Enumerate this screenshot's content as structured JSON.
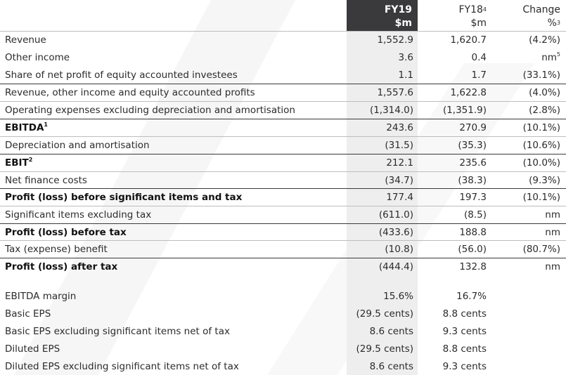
{
  "header": {
    "fy19_line1": "FY19",
    "fy19_line2": "$m",
    "fy18_line1": "FY18",
    "fy18_sup": "4",
    "fy18_line2": "$m",
    "change_line1": "Change",
    "change_line2": "%",
    "change_sup": "3"
  },
  "rows": [
    {
      "label": "Revenue",
      "sup": "",
      "fy19": "1,552.9",
      "fy18": "1,620.7",
      "change": "(4.2%)",
      "change_sup": ""
    },
    {
      "label": "Other income",
      "sup": "",
      "fy19": "3.6",
      "fy18": "0.4",
      "change": "nm",
      "change_sup": "5"
    },
    {
      "label": "Share of net profit of equity accounted investees",
      "sup": "",
      "fy19": "1.1",
      "fy18": "1.7",
      "change": "(33.1%)",
      "change_sup": ""
    },
    {
      "label": "Revenue, other income and equity accounted profits",
      "sup": "",
      "fy19": "1,557.6",
      "fy18": "1,622.8",
      "change": "(4.0%)",
      "change_sup": ""
    },
    {
      "label": "Operating expenses excluding depreciation and amortisation",
      "sup": "",
      "fy19": "(1,314.0)",
      "fy18": "(1,351.9)",
      "change": "(2.8%)",
      "change_sup": ""
    },
    {
      "label": "EBITDA",
      "sup": "1",
      "fy19": "243.6",
      "fy18": "270.9",
      "change": "(10.1%)",
      "change_sup": ""
    },
    {
      "label": "Depreciation and amortisation",
      "sup": "",
      "fy19": "(31.5)",
      "fy18": "(35.3)",
      "change": "(10.6%)",
      "change_sup": ""
    },
    {
      "label": "EBIT",
      "sup": "2",
      "fy19": "212.1",
      "fy18": "235.6",
      "change": "(10.0%)",
      "change_sup": ""
    },
    {
      "label": "Net finance costs",
      "sup": "",
      "fy19": "(34.7)",
      "fy18": "(38.3)",
      "change": "(9.3%)",
      "change_sup": ""
    },
    {
      "label": "Profit (loss) before significant items and tax",
      "sup": "",
      "fy19": "177.4",
      "fy18": "197.3",
      "change": "(10.1%)",
      "change_sup": ""
    },
    {
      "label": "Significant items excluding tax",
      "sup": "",
      "fy19": "(611.0)",
      "fy18": "(8.5)",
      "change": "nm",
      "change_sup": ""
    },
    {
      "label": "Profit (loss) before tax",
      "sup": "",
      "fy19": "(433.6)",
      "fy18": "188.8",
      "change": "nm",
      "change_sup": ""
    },
    {
      "label": "Tax (expense) benefit",
      "sup": "",
      "fy19": "(10.8)",
      "fy18": "(56.0)",
      "change": "(80.7%)",
      "change_sup": ""
    },
    {
      "label": "Profit (loss) after tax",
      "sup": "",
      "fy19": "(444.4)",
      "fy18": "132.8",
      "change": "nm",
      "change_sup": ""
    },
    {
      "label": "EBITDA margin",
      "sup": "",
      "fy19": "15.6%",
      "fy18": "16.7%",
      "change": "",
      "change_sup": ""
    },
    {
      "label": "Basic EPS",
      "sup": "",
      "fy19": "(29.5 cents)",
      "fy18": "8.8 cents",
      "change": "",
      "change_sup": ""
    },
    {
      "label": "Basic EPS excluding significant items net of tax",
      "sup": "",
      "fy19": "8.6 cents",
      "fy18": "9.3 cents",
      "change": "",
      "change_sup": ""
    },
    {
      "label": "Diluted EPS",
      "sup": "",
      "fy19": "(29.5 cents)",
      "fy18": "8.8 cents",
      "change": "",
      "change_sup": ""
    },
    {
      "label": "Diluted EPS excluding significant items net of tax",
      "sup": "",
      "fy19": "8.6 cents",
      "fy18": "9.3 cents",
      "change": "",
      "change_sup": ""
    }
  ],
  "colors": {
    "header_dark": "#3a3a3c",
    "fy19_column": "#eeeeee",
    "text": "#2b2b2b"
  }
}
